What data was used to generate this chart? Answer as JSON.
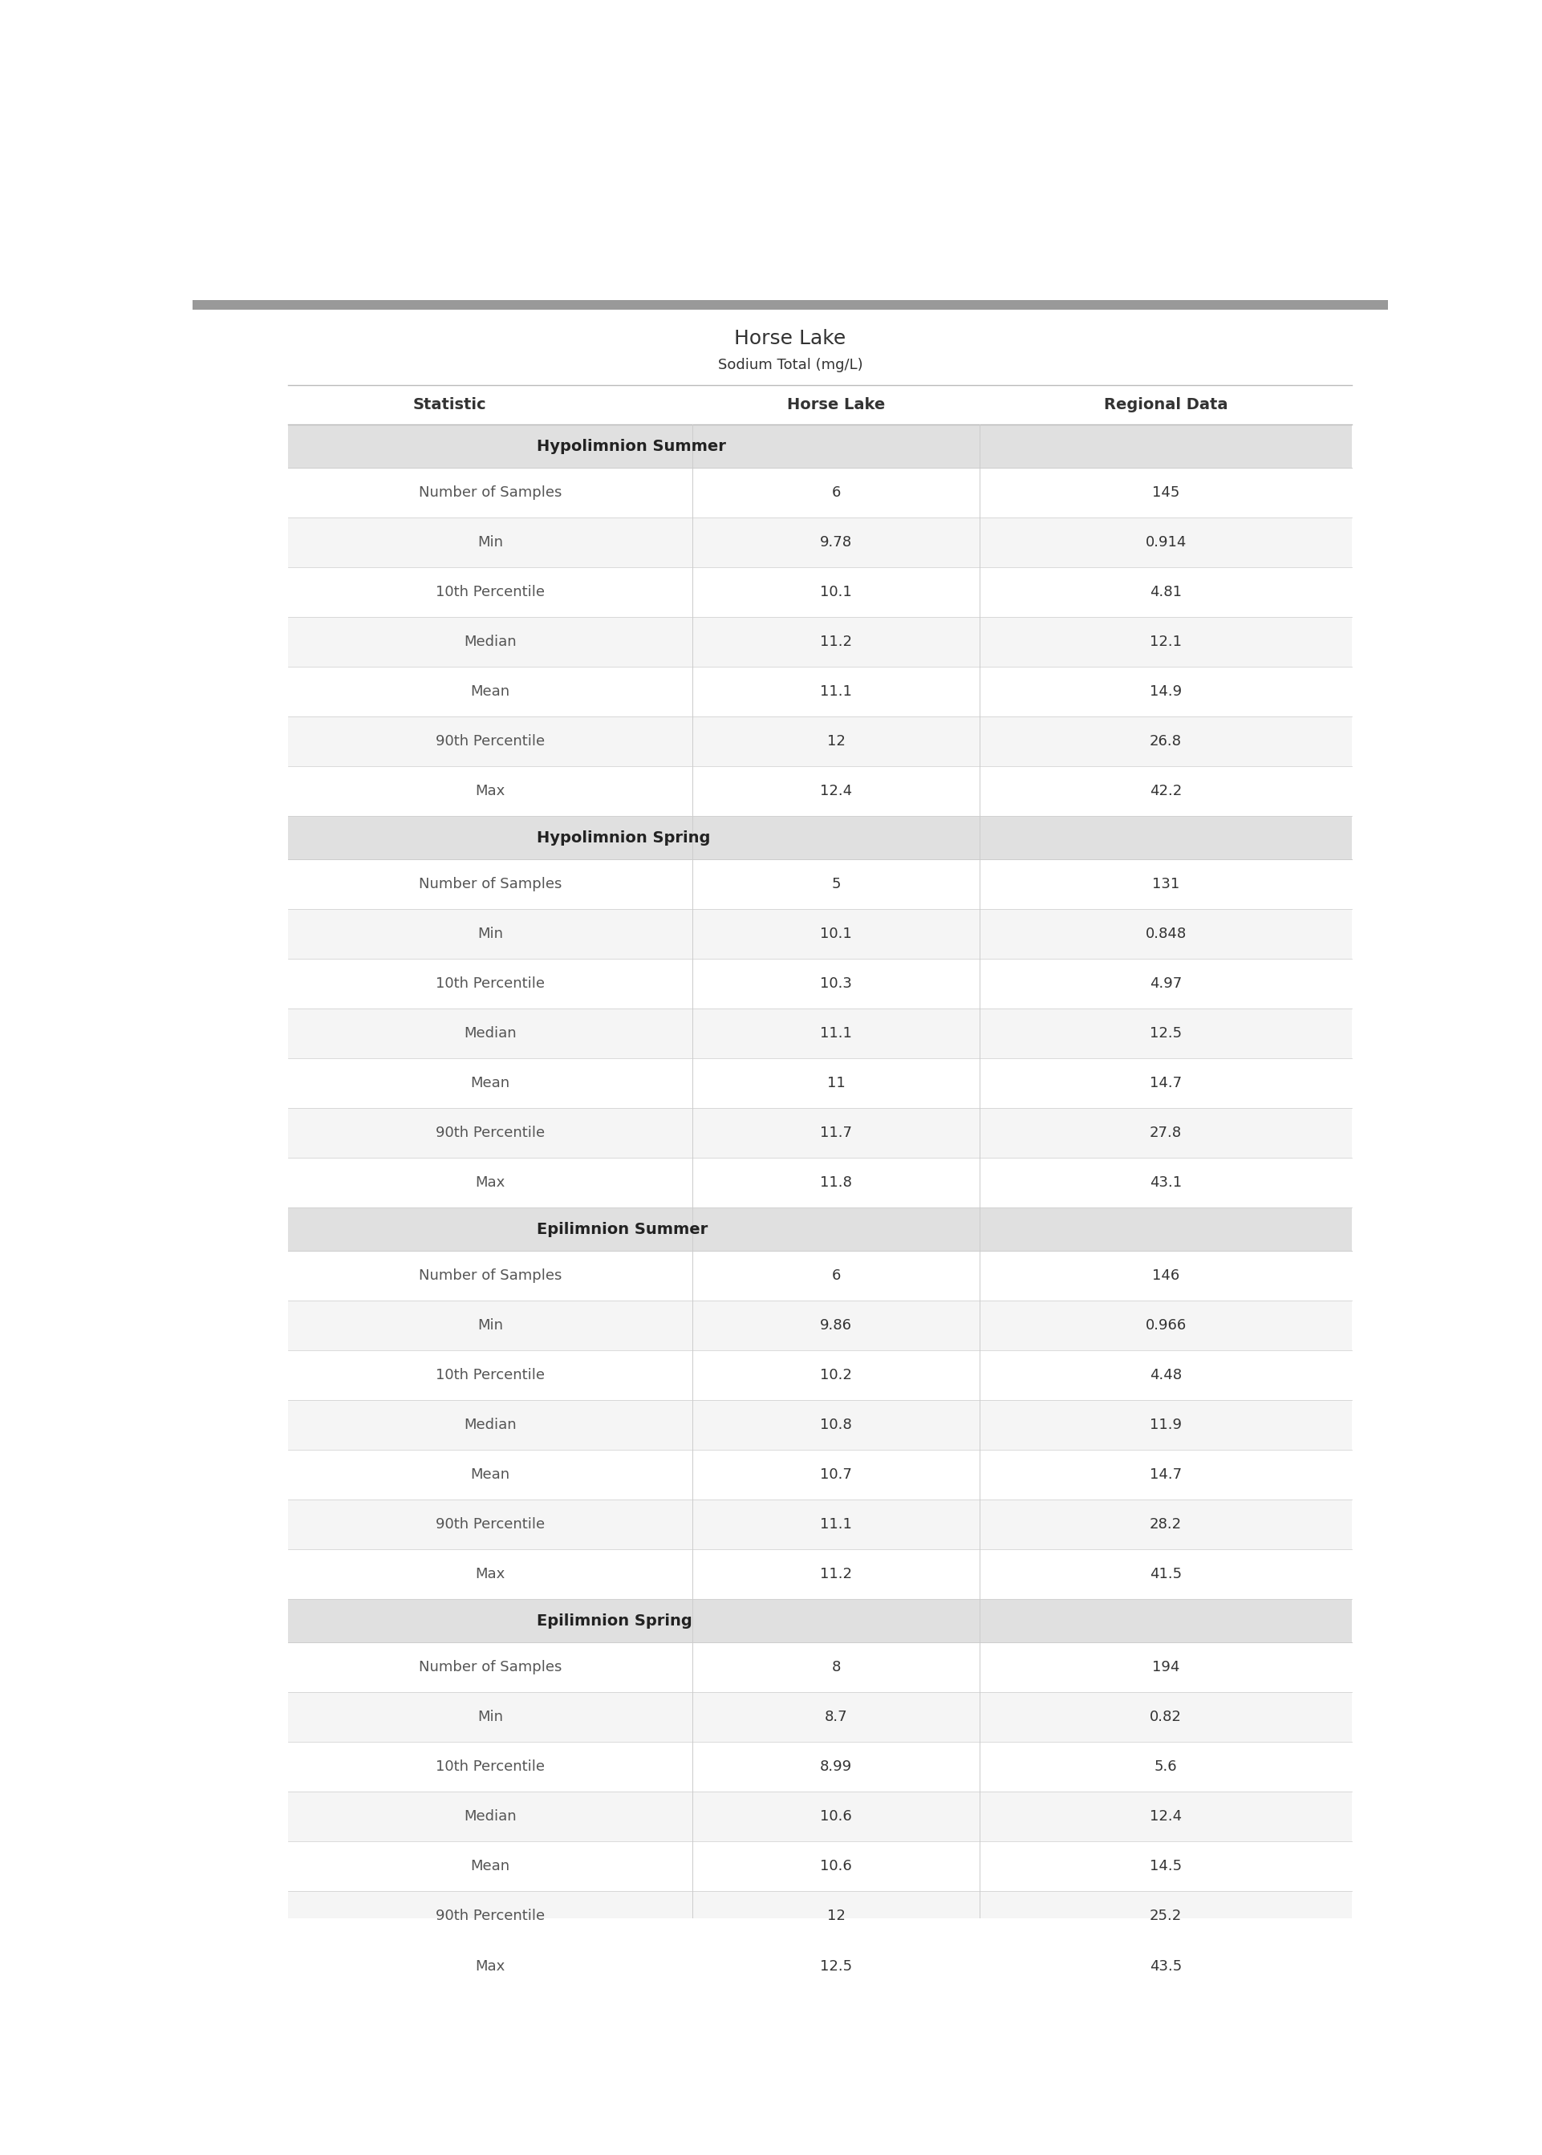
{
  "title": "Horse Lake",
  "subtitle": "Sodium Total (mg/L)",
  "title_color": "#333333",
  "subtitle_color": "#333333",
  "col_headers": [
    "Statistic",
    "Horse Lake",
    "Regional Data"
  ],
  "col_header_color": "#333333",
  "sections": [
    {
      "name": "Hypolimnion Summer",
      "rows": [
        {
          "stat": "Number of Samples",
          "lake": "6",
          "regional": "145"
        },
        {
          "stat": "Min",
          "lake": "9.78",
          "regional": "0.914"
        },
        {
          "stat": "10th Percentile",
          "lake": "10.1",
          "regional": "4.81"
        },
        {
          "stat": "Median",
          "lake": "11.2",
          "regional": "12.1"
        },
        {
          "stat": "Mean",
          "lake": "11.1",
          "regional": "14.9"
        },
        {
          "stat": "90th Percentile",
          "lake": "12",
          "regional": "26.8"
        },
        {
          "stat": "Max",
          "lake": "12.4",
          "regional": "42.2"
        }
      ]
    },
    {
      "name": "Hypolimnion Spring",
      "rows": [
        {
          "stat": "Number of Samples",
          "lake": "5",
          "regional": "131"
        },
        {
          "stat": "Min",
          "lake": "10.1",
          "regional": "0.848"
        },
        {
          "stat": "10th Percentile",
          "lake": "10.3",
          "regional": "4.97"
        },
        {
          "stat": "Median",
          "lake": "11.1",
          "regional": "12.5"
        },
        {
          "stat": "Mean",
          "lake": "11",
          "regional": "14.7"
        },
        {
          "stat": "90th Percentile",
          "lake": "11.7",
          "regional": "27.8"
        },
        {
          "stat": "Max",
          "lake": "11.8",
          "regional": "43.1"
        }
      ]
    },
    {
      "name": "Epilimnion Summer",
      "rows": [
        {
          "stat": "Number of Samples",
          "lake": "6",
          "regional": "146"
        },
        {
          "stat": "Min",
          "lake": "9.86",
          "regional": "0.966"
        },
        {
          "stat": "10th Percentile",
          "lake": "10.2",
          "regional": "4.48"
        },
        {
          "stat": "Median",
          "lake": "10.8",
          "regional": "11.9"
        },
        {
          "stat": "Mean",
          "lake": "10.7",
          "regional": "14.7"
        },
        {
          "stat": "90th Percentile",
          "lake": "11.1",
          "regional": "28.2"
        },
        {
          "stat": "Max",
          "lake": "11.2",
          "regional": "41.5"
        }
      ]
    },
    {
      "name": "Epilimnion Spring",
      "rows": [
        {
          "stat": "Number of Samples",
          "lake": "8",
          "regional": "194"
        },
        {
          "stat": "Min",
          "lake": "8.7",
          "regional": "0.82"
        },
        {
          "stat": "10th Percentile",
          "lake": "8.99",
          "regional": "5.6"
        },
        {
          "stat": "Median",
          "lake": "10.6",
          "regional": "12.4"
        },
        {
          "stat": "Mean",
          "lake": "10.6",
          "regional": "14.5"
        },
        {
          "stat": "90th Percentile",
          "lake": "12",
          "regional": "25.2"
        },
        {
          "stat": "Max",
          "lake": "12.5",
          "regional": "43.5"
        }
      ]
    }
  ],
  "section_header_bg": "#E0E0E0",
  "section_header_color": "#222222",
  "row_bg_white": "#FFFFFF",
  "row_bg_light": "#F5F5F5",
  "divider_color": "#CCCCCC",
  "top_border_color": "#AAAAAA",
  "header_border_color": "#BBBBBB",
  "value_color": "#333333",
  "stat_color": "#555555",
  "regional_highlight_color": "#4472C4",
  "top_stripe_color": "#999999",
  "title_fontsize": 18,
  "subtitle_fontsize": 13,
  "header_fontsize": 14,
  "stat_fontsize": 13,
  "value_fontsize": 13,
  "section_fontsize": 14
}
